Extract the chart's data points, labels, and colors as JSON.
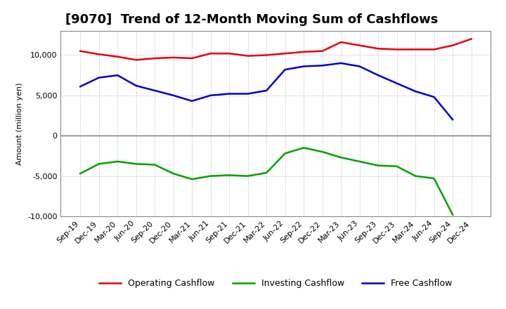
{
  "title": "[9070]  Trend of 12-Month Moving Sum of Cashflows",
  "ylabel": "Amount (million yen)",
  "ylim": [
    -10000,
    13000
  ],
  "yticks": [
    -10000,
    -5000,
    0,
    5000,
    10000
  ],
  "x_labels": [
    "Sep-19",
    "Dec-19",
    "Mar-20",
    "Jun-20",
    "Sep-20",
    "Dec-20",
    "Mar-21",
    "Jun-21",
    "Sep-21",
    "Dec-21",
    "Mar-22",
    "Jun-22",
    "Sep-22",
    "Dec-22",
    "Mar-23",
    "Jun-23",
    "Sep-23",
    "Dec-23",
    "Mar-24",
    "Jun-24",
    "Sep-24",
    "Dec-24"
  ],
  "operating": [
    10500,
    10100,
    9800,
    9400,
    9600,
    9700,
    9600,
    10200,
    10200,
    9900,
    10000,
    10200,
    10400,
    10500,
    11600,
    11200,
    10800,
    10700,
    10700,
    10700,
    11200,
    12000
  ],
  "investing": [
    -4700,
    -3500,
    -3200,
    -3500,
    -3600,
    -4700,
    -5400,
    -5000,
    -4900,
    -5000,
    -4600,
    -2200,
    -1500,
    -2000,
    -2700,
    -3200,
    -3700,
    -3800,
    -5000,
    -5300,
    -9800,
    null
  ],
  "free": [
    6100,
    7200,
    7500,
    6200,
    5600,
    5000,
    4300,
    5000,
    5200,
    5200,
    5600,
    8200,
    8600,
    8700,
    9000,
    8600,
    7500,
    6500,
    5500,
    4800,
    2000,
    null
  ],
  "op_color": "#e8000d",
  "inv_color": "#00a000",
  "free_color": "#0000cc",
  "bg_color": "#ffffff",
  "plot_bg_color": "#ffffff",
  "grid_color": "#aaaaaa",
  "title_fontsize": 13,
  "axis_fontsize": 8,
  "ylabel_fontsize": 8,
  "legend_fontsize": 9,
  "linewidth": 1.8
}
